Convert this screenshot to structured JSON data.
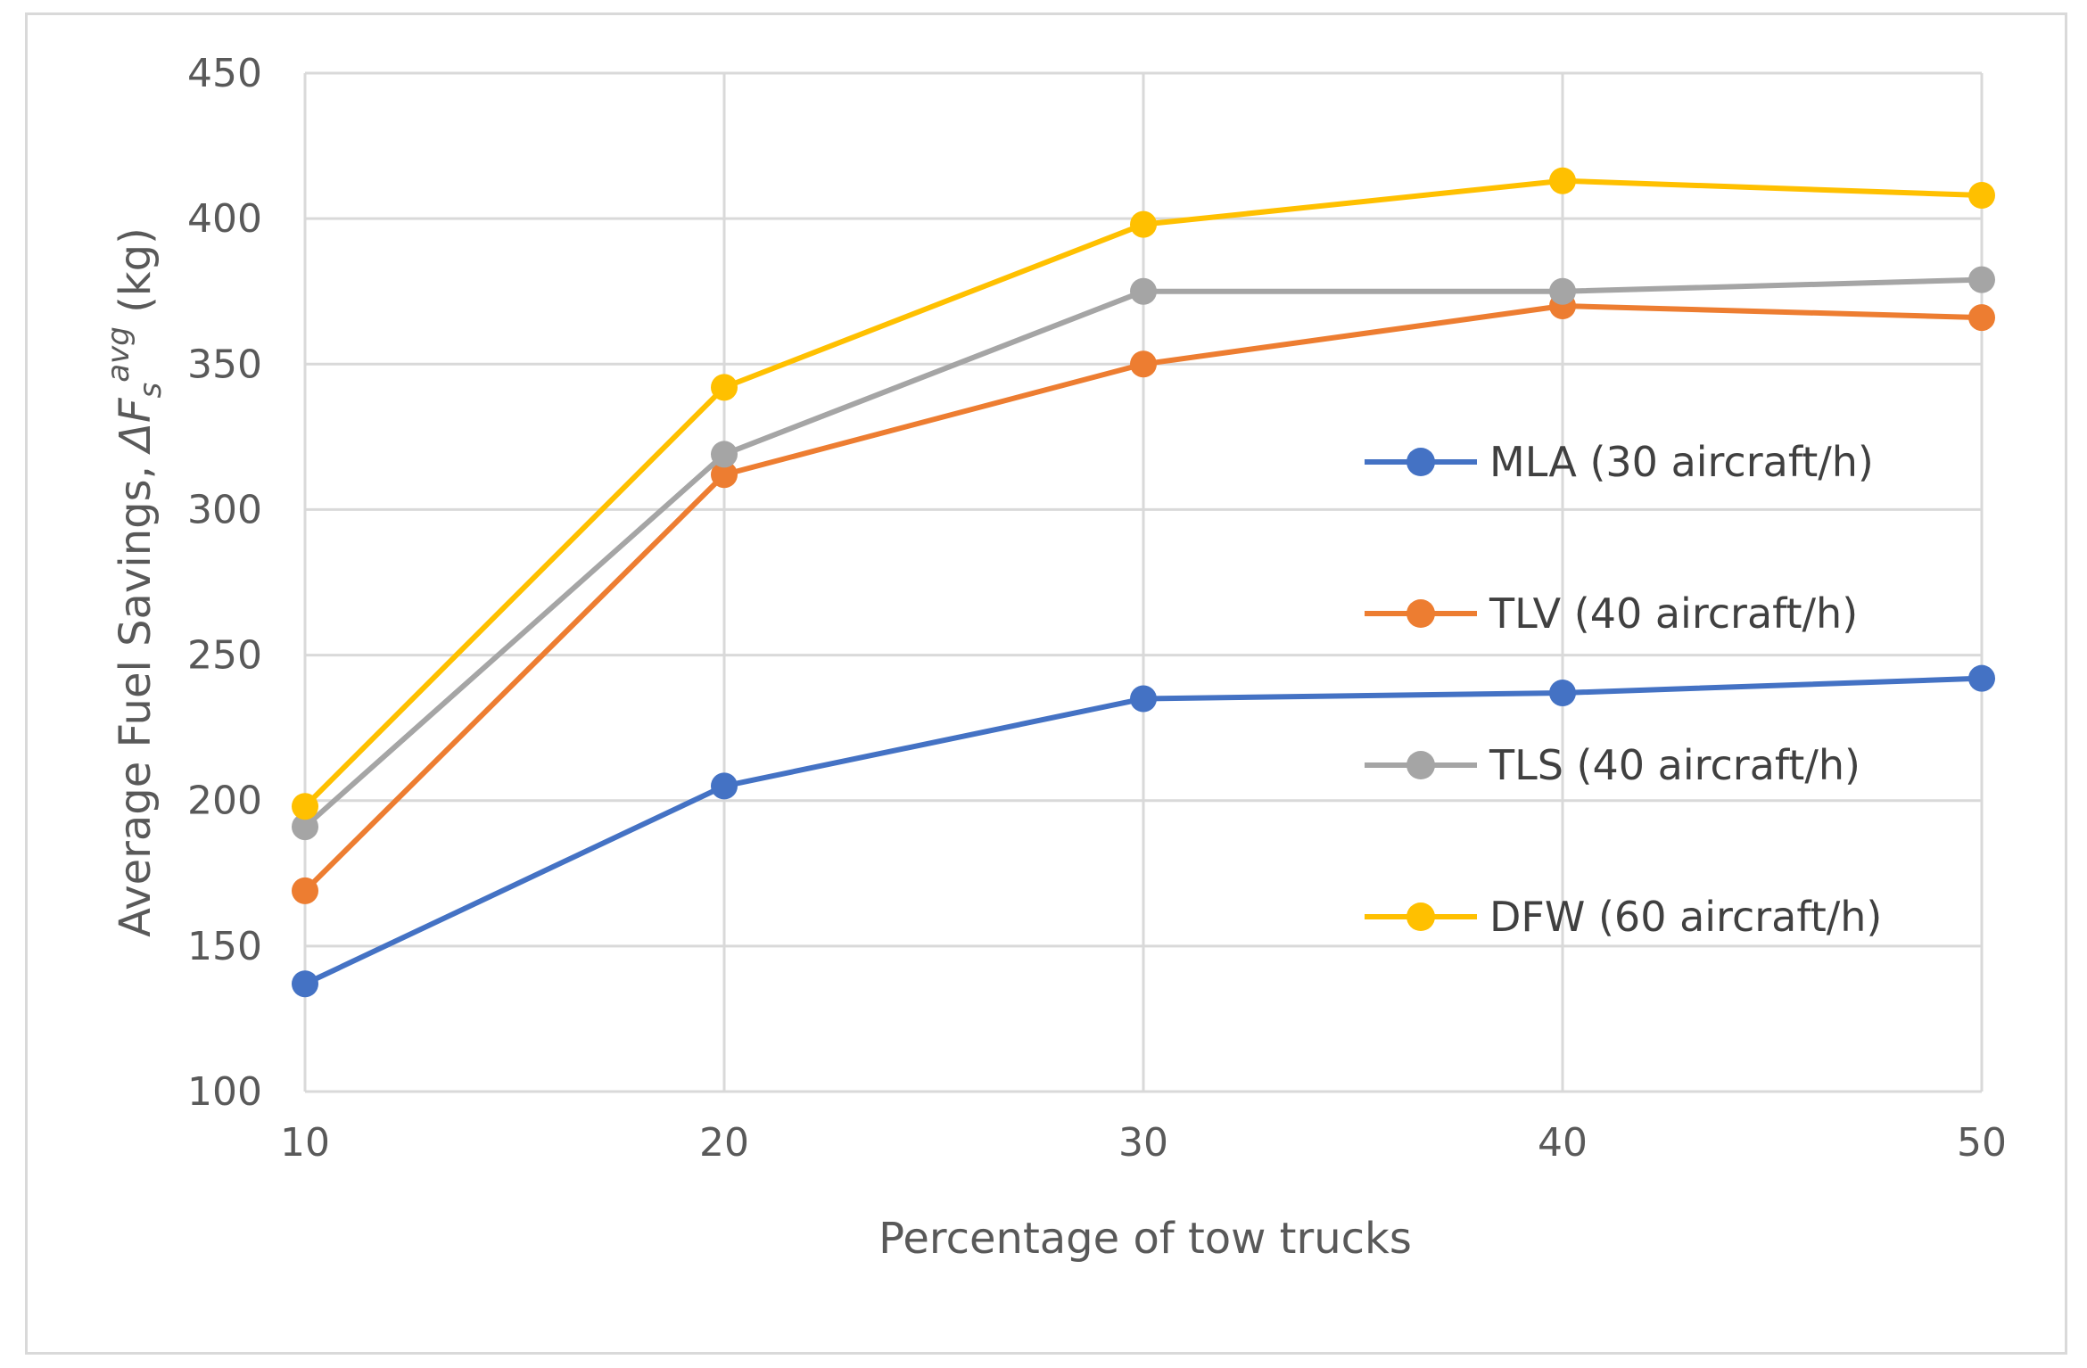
{
  "chart_data": {
    "type": "line",
    "title": "",
    "xlabel": "Percentage of tow trucks",
    "ylabel": {
      "prefix": "Average Fuel Savings, ",
      "symbol": "ΔF",
      "subscript": "s",
      "superscript": "avg",
      "suffix": " (kg)"
    },
    "x": [
      10,
      20,
      30,
      40,
      50
    ],
    "x_ticks": [
      "10",
      "20",
      "30",
      "40",
      "50"
    ],
    "ylim": [
      100,
      450
    ],
    "y_ticks": [
      "100",
      "150",
      "200",
      "250",
      "300",
      "350",
      "400",
      "450"
    ],
    "grid": true,
    "legend_position": "right",
    "series": [
      {
        "name": "MLA (30 aircraft/h)",
        "color": "#4472C4",
        "values": [
          137,
          205,
          235,
          237,
          242
        ]
      },
      {
        "name": "TLV (40 aircraft/h)",
        "color": "#ED7D31",
        "values": [
          169,
          312,
          350,
          370,
          366
        ]
      },
      {
        "name": "TLS (40 aircraft/h)",
        "color": "#A5A5A5",
        "values": [
          191,
          319,
          375,
          375,
          379
        ]
      },
      {
        "name": "DFW (60 aircraft/h)",
        "color": "#FFC000",
        "values": [
          198,
          342,
          398,
          413,
          408
        ]
      }
    ]
  }
}
